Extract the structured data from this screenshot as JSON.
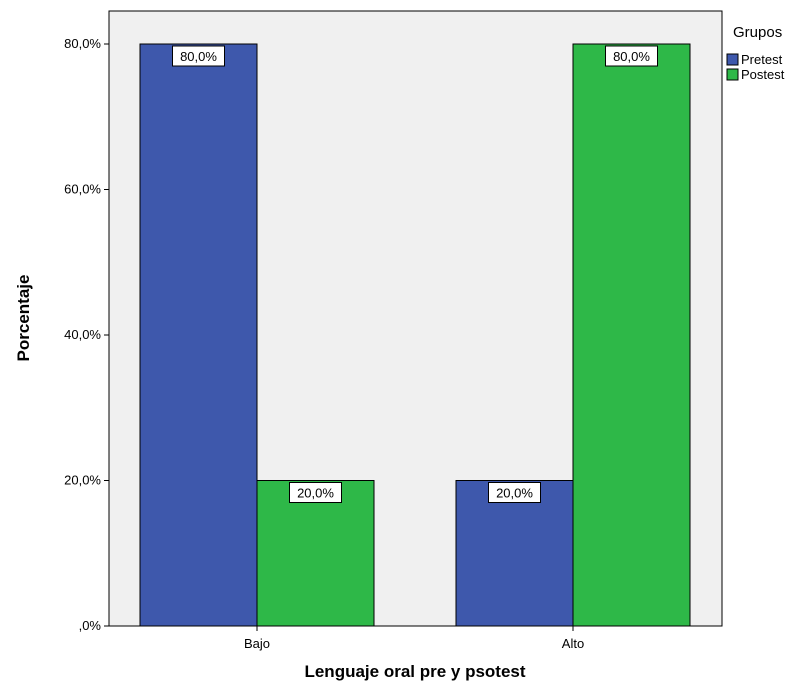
{
  "chart_data": {
    "type": "bar",
    "categories": [
      "Bajo",
      "Alto"
    ],
    "series": [
      {
        "name": "Pretest",
        "values": [
          80.0,
          20.0
        ],
        "color": "#3e58ac"
      },
      {
        "name": "Postest",
        "values": [
          20.0,
          80.0
        ],
        "color": "#2eb848"
      }
    ],
    "data_labels": [
      [
        "80,0%",
        "20,0%"
      ],
      [
        "20,0%",
        "80,0%"
      ]
    ],
    "xlabel": "Lenguaje oral pre y psotest",
    "ylabel": "Porcentaje",
    "ylim": [
      0,
      80
    ],
    "yticks": [
      0,
      20,
      40,
      60,
      80
    ],
    "ytick_labels": [
      ",0%",
      "20,0%",
      "40,0%",
      "60,0%",
      "80,0%"
    ],
    "legend_title": "Grupos",
    "legend_position": "top-right",
    "grid": false,
    "plot_background": "#f0f0f0"
  }
}
